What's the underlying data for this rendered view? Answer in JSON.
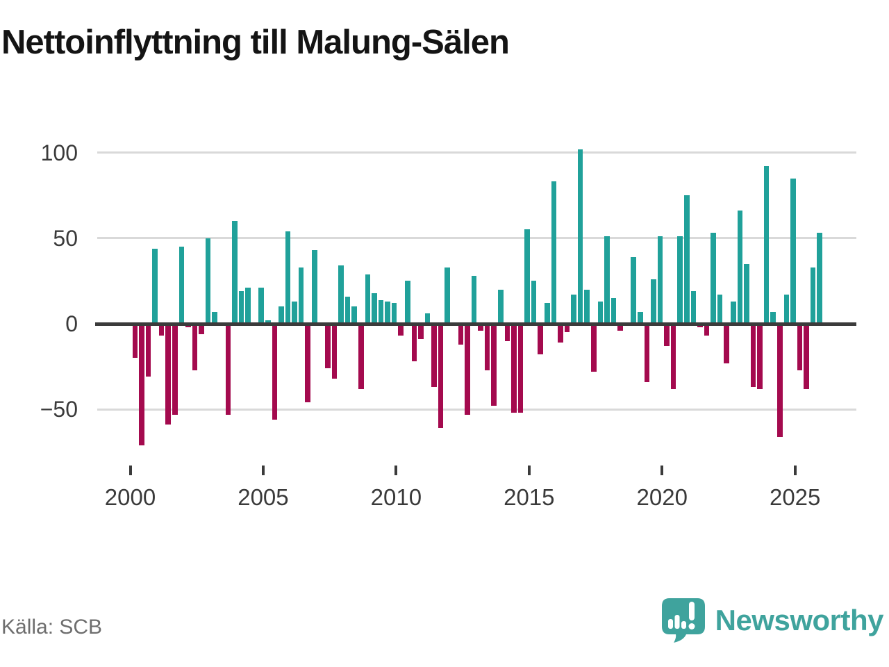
{
  "title": "Nettoinflyttning till Malung-Sälen",
  "source": "Källa: SCB",
  "logo": {
    "text": "Newsworthy"
  },
  "chart_data": {
    "type": "bar",
    "title": "Nettoinflyttning till Malung-Sälen",
    "frequency": "quarterly",
    "positive_color": "#20a19a",
    "negative_color": "#a40a4e",
    "grid": true,
    "legend": false,
    "y_axis": {
      "ticks": [
        100,
        50,
        0,
        -50
      ],
      "range": [
        -75,
        105
      ]
    },
    "x_axis": {
      "tick_years": [
        2000,
        2005,
        2010,
        2015,
        2020,
        2025
      ]
    },
    "series_by_year": [
      {
        "year": 2000,
        "values": [
          -20,
          -71,
          -31,
          44
        ]
      },
      {
        "year": 2001,
        "values": [
          -7,
          -59,
          -53,
          45
        ]
      },
      {
        "year": 2002,
        "values": [
          -2,
          -27,
          -6,
          50
        ]
      },
      {
        "year": 2003,
        "values": [
          7,
          0,
          -53,
          60
        ]
      },
      {
        "year": 2004,
        "values": [
          19,
          21,
          0,
          21
        ]
      },
      {
        "year": 2005,
        "values": [
          2,
          -56,
          10,
          54
        ]
      },
      {
        "year": 2006,
        "values": [
          13,
          33,
          -46,
          43
        ]
      },
      {
        "year": 2007,
        "values": [
          0,
          -26,
          -32,
          34
        ]
      },
      {
        "year": 2008,
        "values": [
          16,
          10,
          -38,
          29
        ]
      },
      {
        "year": 2009,
        "values": [
          18,
          14,
          13,
          12
        ]
      },
      {
        "year": 2010,
        "values": [
          -7,
          25,
          -22,
          -9
        ]
      },
      {
        "year": 2011,
        "values": [
          6,
          -37,
          -61,
          33
        ]
      },
      {
        "year": 2012,
        "values": [
          0,
          -12,
          -53,
          28
        ]
      },
      {
        "year": 2013,
        "values": [
          -4,
          -27,
          -48,
          20
        ]
      },
      {
        "year": 2014,
        "values": [
          -10,
          -52,
          -52,
          55
        ]
      },
      {
        "year": 2015,
        "values": [
          25,
          -18,
          12,
          83
        ]
      },
      {
        "year": 2016,
        "values": [
          -11,
          -5,
          17,
          102
        ]
      },
      {
        "year": 2017,
        "values": [
          20,
          -28,
          13,
          51
        ]
      },
      {
        "year": 2018,
        "values": [
          15,
          -4,
          0,
          39
        ]
      },
      {
        "year": 2019,
        "values": [
          7,
          -34,
          26,
          51
        ]
      },
      {
        "year": 2020,
        "values": [
          -13,
          -38,
          51,
          75
        ]
      },
      {
        "year": 2021,
        "values": [
          19,
          -2,
          -7,
          53
        ]
      },
      {
        "year": 2022,
        "values": [
          17,
          -23,
          13,
          66
        ]
      },
      {
        "year": 2023,
        "values": [
          35,
          -37,
          -38,
          92
        ]
      },
      {
        "year": 2024,
        "values": [
          7,
          -66,
          17,
          85
        ]
      },
      {
        "year": 2025,
        "values": [
          -27,
          -38,
          33,
          53
        ]
      }
    ]
  }
}
